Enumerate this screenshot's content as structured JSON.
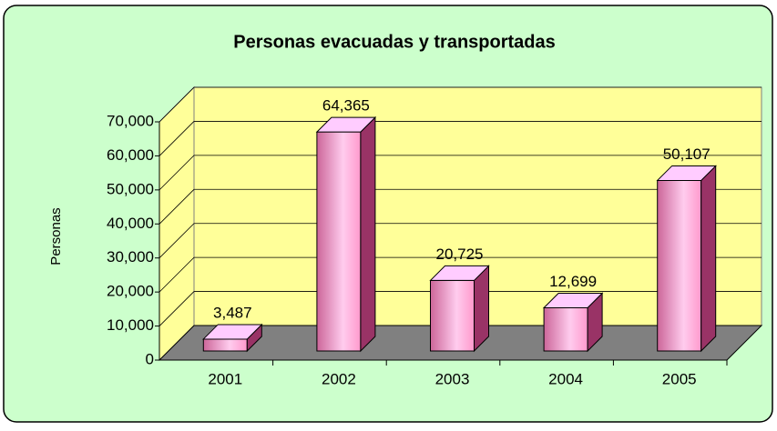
{
  "chart_data": {
    "type": "bar3d",
    "title": "Personas evacuadas y transportadas",
    "y_label": "Personas",
    "categories": [
      "2001",
      "2002",
      "2003",
      "2004",
      "2005"
    ],
    "values": [
      3487,
      64365,
      20725,
      12699,
      50107
    ],
    "value_labels": [
      "3,487",
      "64,365",
      "20,725",
      "12,699",
      "50,107"
    ],
    "color": "#ff99cc",
    "ylim": [
      0,
      70000
    ],
    "yticks": [
      0,
      {
        "value": 10000,
        "label": "10,000"
      },
      {
        "value": 20000,
        "label": "20,000"
      },
      {
        "value": 30000,
        "label": "30,000"
      },
      {
        "value": 40000,
        "label": "40,000"
      },
      {
        "value": 50000,
        "label": "50,000"
      },
      {
        "value": 60000,
        "label": "60,000"
      },
      {
        "value": 70000,
        "label": "70,000"
      }
    ],
    "grid": true
  }
}
